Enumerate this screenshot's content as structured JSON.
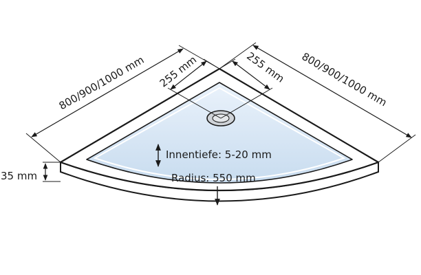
{
  "dimensions": {
    "side_left": "800/900/1000 mm",
    "side_right": "800/900/1000 mm",
    "drain_offset_left": "255 mm",
    "drain_offset_right": "255 mm",
    "height": "35 mm"
  },
  "labels": {
    "inner_depth": "Innentiefe: 5-20 mm",
    "radius": "Radius: 550 mm"
  },
  "colors": {
    "outline": "#1a1a1a",
    "tray_surface": "#ffffff",
    "basin_fill": "#dce9f6",
    "drain_fill": "#cfd3d8"
  }
}
